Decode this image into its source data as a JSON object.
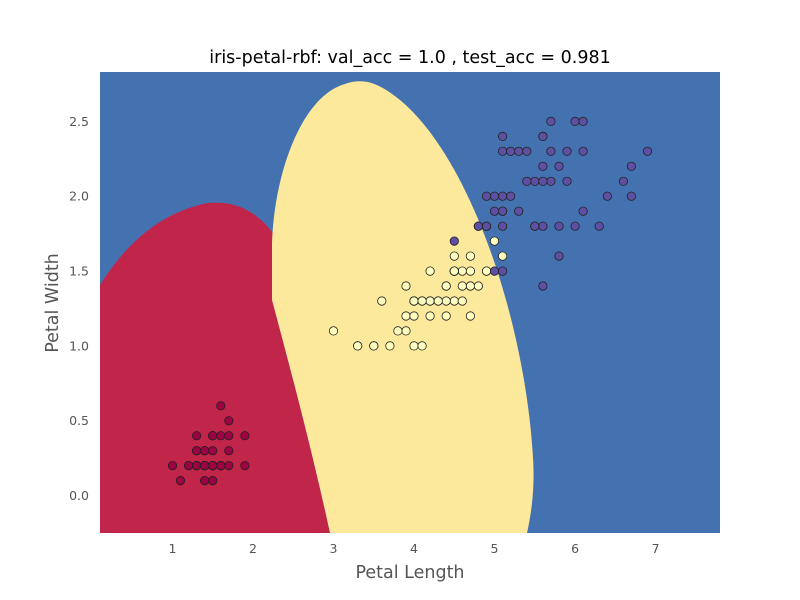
{
  "chart_data": {
    "type": "scatter",
    "title": "iris-petal-rbf: val_acc = 1.0 , test_acc = 0.981",
    "xlabel": "Petal Length",
    "ylabel": "Petal Width",
    "xlim": [
      0.1,
      7.8
    ],
    "ylim": [
      -0.25,
      2.83
    ],
    "xticks": [
      "1",
      "2",
      "3",
      "4",
      "5",
      "6",
      "7"
    ],
    "yticks": [
      "0.0",
      "0.5",
      "1.0",
      "1.5",
      "2.0",
      "2.5"
    ],
    "grid": false,
    "legend": "none",
    "colors": {
      "class_0_region": "#c2254a",
      "class_1_region": "#fde99c",
      "class_2_region": "#4472b1",
      "class_0_point": "#9e0142",
      "class_1_point": "#ffffbf",
      "class_2_point": "#5e4fa2"
    },
    "series": [
      {
        "class": 0,
        "x": [
          1.4,
          1.4,
          1.3,
          1.5,
          1.4,
          1.7,
          1.4,
          1.5,
          1.4,
          1.5,
          1.5,
          1.6,
          1.4,
          1.1,
          1.2,
          1.5,
          1.3,
          1.4,
          1.7,
          1.5,
          1.7,
          1.5,
          1.0,
          1.7,
          1.9,
          1.6,
          1.6,
          1.5,
          1.4,
          1.6,
          1.6,
          1.5,
          1.5,
          1.4,
          1.5,
          1.2,
          1.3,
          1.4,
          1.3,
          1.5,
          1.3,
          1.3,
          1.3,
          1.6,
          1.9,
          1.4,
          1.6,
          1.4,
          1.5,
          1.4
        ],
        "y": [
          0.2,
          0.2,
          0.2,
          0.2,
          0.2,
          0.4,
          0.3,
          0.2,
          0.2,
          0.1,
          0.2,
          0.2,
          0.1,
          0.1,
          0.2,
          0.4,
          0.4,
          0.3,
          0.3,
          0.3,
          0.2,
          0.4,
          0.2,
          0.5,
          0.2,
          0.2,
          0.4,
          0.2,
          0.2,
          0.2,
          0.2,
          0.4,
          0.1,
          0.2,
          0.2,
          0.2,
          0.2,
          0.1,
          0.2,
          0.2,
          0.3,
          0.3,
          0.2,
          0.6,
          0.4,
          0.3,
          0.2,
          0.2,
          0.2,
          0.2
        ]
      },
      {
        "class": 1,
        "x": [
          4.7,
          4.5,
          4.9,
          4.0,
          4.6,
          4.5,
          4.7,
          3.3,
          4.6,
          3.9,
          3.5,
          4.2,
          4.0,
          4.7,
          3.6,
          4.4,
          4.5,
          4.1,
          4.5,
          3.9,
          4.8,
          4.0,
          4.9,
          4.7,
          4.3,
          4.4,
          4.8,
          5.0,
          4.5,
          3.5,
          3.8,
          3.7,
          3.9,
          5.1,
          4.5,
          4.5,
          4.7,
          4.4,
          4.1,
          4.0,
          4.4,
          4.6,
          4.0,
          3.3,
          4.2,
          4.2,
          4.2,
          4.3,
          3.0,
          4.1
        ],
        "y": [
          1.4,
          1.5,
          1.5,
          1.3,
          1.5,
          1.3,
          1.6,
          1.0,
          1.3,
          1.4,
          1.0,
          1.5,
          1.0,
          1.4,
          1.3,
          1.4,
          1.5,
          1.0,
          1.5,
          1.1,
          1.8,
          1.3,
          1.5,
          1.2,
          1.3,
          1.4,
          1.4,
          1.7,
          1.5,
          1.0,
          1.1,
          1.0,
          1.2,
          1.6,
          1.5,
          1.6,
          1.5,
          1.3,
          1.3,
          1.3,
          1.2,
          1.4,
          1.2,
          1.0,
          1.3,
          1.2,
          1.3,
          1.3,
          1.1,
          1.3
        ]
      },
      {
        "class": 2,
        "x": [
          6.0,
          5.1,
          5.9,
          5.6,
          5.8,
          6.6,
          4.5,
          6.3,
          5.8,
          6.1,
          5.1,
          5.3,
          5.5,
          5.0,
          5.1,
          5.3,
          5.5,
          6.7,
          6.9,
          5.0,
          5.7,
          4.9,
          6.7,
          4.9,
          5.7,
          6.0,
          4.8,
          4.9,
          5.6,
          5.8,
          6.1,
          6.4,
          5.6,
          5.1,
          5.6,
          6.1,
          5.6,
          5.5,
          4.8,
          5.4,
          5.6,
          5.1,
          5.1,
          5.9,
          5.7,
          5.2,
          5.0,
          5.2,
          5.4,
          5.1
        ],
        "y": [
          2.5,
          1.9,
          2.1,
          1.8,
          2.2,
          2.1,
          1.7,
          1.8,
          1.8,
          2.5,
          2.0,
          1.9,
          2.1,
          2.0,
          2.4,
          2.3,
          1.8,
          2.2,
          2.3,
          1.5,
          2.3,
          2.0,
          2.0,
          1.8,
          2.1,
          1.8,
          1.8,
          1.8,
          2.1,
          1.6,
          1.9,
          2.0,
          2.2,
          1.5,
          1.4,
          2.3,
          2.4,
          1.8,
          1.8,
          2.1,
          2.4,
          2.3,
          1.9,
          2.3,
          2.5,
          2.3,
          1.9,
          2.0,
          2.3,
          1.8
        ]
      }
    ]
  }
}
